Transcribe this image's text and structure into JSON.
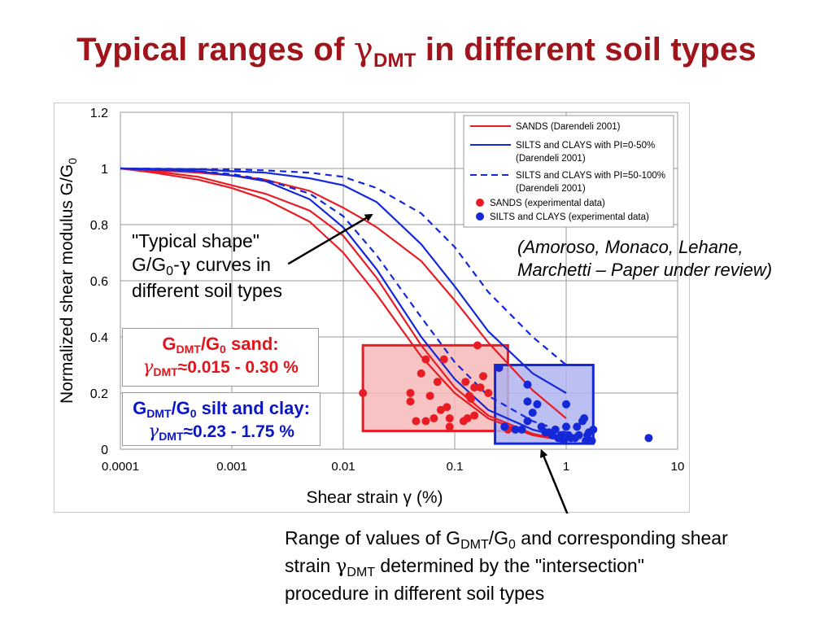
{
  "title": {
    "pre": "Typical ranges of ",
    "symbol": "γ",
    "sub": "DMT",
    "post": " in different soil types"
  },
  "notes": {
    "typical_line1": "\"Typical shape\"",
    "typical_line2_a": "G/G",
    "typical_line2_sub": "0",
    "typical_line2_b": "-",
    "typical_line2_sym": "γ",
    "typical_line2_c": " curves in",
    "typical_line3": "different soil types",
    "ref_line1": "(Amoroso, Monaco, Lehane,",
    "ref_line2": "Marchetti – Paper under review)",
    "range_line1_a": "Range of values of G",
    "range_line1_sub1": "DMT",
    "range_line1_b": "/G",
    "range_line1_sub2": "0",
    "range_line1_c": " and corresponding shear",
    "range_line2_a": "strain ",
    "range_line2_sym": "γ",
    "range_line2_sub": "DMT",
    "range_line2_b": " determined by the \"intersection\"",
    "range_line3": "procedure in different soil types"
  },
  "boxes": {
    "sand": {
      "g": "G",
      "sub1": "DMT",
      "mid": "/G",
      "sub2": "0",
      "post": " sand:",
      "sym": "γ",
      "symsub": "DMT",
      "approx": "≈",
      "range": "0.015 - 0.30 %"
    },
    "silt": {
      "g": "G",
      "sub1": "DMT",
      "mid": "/G",
      "sub2": "0",
      "post": " silt and clay:",
      "sym": "γ",
      "symsub": "DMT",
      "approx": "≈",
      "range": "0.23 - 1.75 %"
    }
  },
  "chart_data": {
    "type": "scatter",
    "xscale": "log",
    "xlim": [
      0.0001,
      10
    ],
    "ylim": [
      0,
      1.2
    ],
    "x_ticks": [
      "0.0001",
      "0.001",
      "0.01",
      "0.1",
      "1",
      "10"
    ],
    "y_ticks": [
      "0",
      "0.2",
      "0.4",
      "0.6",
      "0.8",
      "1",
      "1.2"
    ],
    "xlabel": "Shear strain γ (%)",
    "ylabel_main": "Normalized shear modulus G/G",
    "ylabel_sub": "0",
    "grid": true,
    "legend_position": "top-right",
    "legend": [
      "SANDS (Darendeli 2001)",
      "SILTS and CLAYS with PI=0-50%",
      "(Darendeli 2001)",
      "SILTS and CLAYS with PI=50-100%",
      "(Darendeli 2001)",
      "SANDS (experimental data)",
      "SILTS and CLAYS (experimental  data)"
    ],
    "colors": {
      "sand": "#e81c24",
      "silt": "#1428d8",
      "fill_sand": "#f6b8b8",
      "fill_silt": "#b0b4f0"
    },
    "curves": [
      {
        "series": "sand",
        "style": "solid",
        "x": [
          0.0001,
          0.0002,
          0.0005,
          0.001,
          0.002,
          0.005,
          0.01,
          0.02,
          0.05,
          0.1,
          0.2,
          0.5,
          1
        ],
        "y": [
          1.0,
          0.985,
          0.96,
          0.93,
          0.89,
          0.81,
          0.7,
          0.55,
          0.33,
          0.2,
          0.11,
          0.05,
          0.03
        ]
      },
      {
        "series": "sand",
        "style": "solid",
        "x": [
          0.0001,
          0.0002,
          0.0005,
          0.001,
          0.002,
          0.005,
          0.01,
          0.02,
          0.05,
          0.1,
          0.2,
          0.5,
          1
        ],
        "y": [
          1.0,
          0.99,
          0.97,
          0.94,
          0.91,
          0.85,
          0.76,
          0.61,
          0.37,
          0.22,
          0.12,
          0.055,
          0.03
        ]
      },
      {
        "series": "sand",
        "style": "solid",
        "x": [
          0.0001,
          0.0005,
          0.001,
          0.002,
          0.005,
          0.01,
          0.015,
          0.02,
          0.05,
          0.1,
          0.2,
          0.5,
          1
        ],
        "y": [
          1.0,
          0.985,
          0.975,
          0.96,
          0.92,
          0.86,
          0.82,
          0.79,
          0.67,
          0.53,
          0.38,
          0.21,
          0.11
        ]
      },
      {
        "series": "silt",
        "style": "solid",
        "x": [
          0.0001,
          0.0005,
          0.001,
          0.002,
          0.005,
          0.01,
          0.02,
          0.05,
          0.1,
          0.2,
          0.5,
          1
        ],
        "y": [
          1.0,
          0.99,
          0.975,
          0.955,
          0.89,
          0.79,
          0.64,
          0.4,
          0.25,
          0.14,
          0.07,
          0.04
        ]
      },
      {
        "series": "silt",
        "style": "solid",
        "x": [
          0.0001,
          0.0005,
          0.001,
          0.002,
          0.005,
          0.01,
          0.02,
          0.05,
          0.1,
          0.2,
          0.5,
          1
        ],
        "y": [
          1.0,
          0.997,
          0.99,
          0.985,
          0.965,
          0.94,
          0.88,
          0.73,
          0.58,
          0.42,
          0.27,
          0.2
        ]
      },
      {
        "series": "silt",
        "style": "dashed",
        "x": [
          0.0001,
          0.0005,
          0.001,
          0.002,
          0.005,
          0.01,
          0.02,
          0.05,
          0.1,
          0.2,
          0.5,
          1
        ],
        "y": [
          1.0,
          0.99,
          0.98,
          0.96,
          0.91,
          0.83,
          0.69,
          0.47,
          0.31,
          0.19,
          0.1,
          0.06
        ]
      },
      {
        "series": "silt",
        "style": "dashed",
        "x": [
          0.0001,
          0.001,
          0.002,
          0.005,
          0.01,
          0.02,
          0.05,
          0.1,
          0.2,
          0.5,
          1
        ],
        "y": [
          1.0,
          0.997,
          0.993,
          0.985,
          0.97,
          0.93,
          0.84,
          0.72,
          0.56,
          0.4,
          0.3
        ]
      }
    ],
    "range_boxes": [
      {
        "series": "sand",
        "x": [
          0.015,
          0.3
        ],
        "y": [
          0.065,
          0.37
        ]
      },
      {
        "series": "silt",
        "x": [
          0.23,
          1.75
        ],
        "y": [
          0.02,
          0.3
        ]
      }
    ],
    "points_sand": [
      [
        0.015,
        0.2
      ],
      [
        0.04,
        0.17
      ],
      [
        0.04,
        0.2
      ],
      [
        0.045,
        0.1
      ],
      [
        0.05,
        0.27
      ],
      [
        0.055,
        0.1
      ],
      [
        0.055,
        0.32
      ],
      [
        0.06,
        0.19
      ],
      [
        0.065,
        0.11
      ],
      [
        0.07,
        0.24
      ],
      [
        0.075,
        0.14
      ],
      [
        0.08,
        0.32
      ],
      [
        0.085,
        0.15
      ],
      [
        0.09,
        0.11
      ],
      [
        0.09,
        0.08
      ],
      [
        0.12,
        0.1
      ],
      [
        0.125,
        0.24
      ],
      [
        0.13,
        0.11
      ],
      [
        0.135,
        0.19
      ],
      [
        0.14,
        0.18
      ],
      [
        0.15,
        0.22
      ],
      [
        0.15,
        0.12
      ],
      [
        0.16,
        0.37
      ],
      [
        0.17,
        0.22
      ],
      [
        0.18,
        0.26
      ],
      [
        0.2,
        0.2
      ],
      [
        0.25,
        0.29
      ],
      [
        0.3,
        0.07
      ]
    ],
    "points_silt": [
      [
        0.25,
        0.29
      ],
      [
        0.28,
        0.08
      ],
      [
        0.35,
        0.07
      ],
      [
        0.4,
        0.07
      ],
      [
        0.45,
        0.23
      ],
      [
        0.45,
        0.17
      ],
      [
        0.45,
        0.1
      ],
      [
        0.5,
        0.13
      ],
      [
        0.55,
        0.16
      ],
      [
        0.6,
        0.08
      ],
      [
        0.65,
        0.06
      ],
      [
        0.7,
        0.06
      ],
      [
        0.75,
        0.05
      ],
      [
        0.8,
        0.07
      ],
      [
        0.85,
        0.04
      ],
      [
        0.9,
        0.05
      ],
      [
        0.95,
        0.03
      ],
      [
        1.0,
        0.16
      ],
      [
        1.0,
        0.08
      ],
      [
        1.05,
        0.05
      ],
      [
        1.1,
        0.04
      ],
      [
        1.2,
        0.04
      ],
      [
        1.25,
        0.08
      ],
      [
        1.3,
        0.05
      ],
      [
        1.4,
        0.1
      ],
      [
        1.45,
        0.11
      ],
      [
        1.5,
        0.03
      ],
      [
        1.55,
        0.05
      ],
      [
        1.6,
        0.06
      ],
      [
        1.7,
        0.03
      ],
      [
        1.75,
        0.07
      ],
      [
        5.5,
        0.04
      ]
    ],
    "annotation_arrows": [
      {
        "from": [
          0.0032,
          0.66
        ],
        "to": [
          0.018,
          0.835
        ]
      },
      {
        "from": [
          1.05,
          -0.24
        ],
        "to": [
          0.6,
          -0.005
        ]
      }
    ]
  }
}
